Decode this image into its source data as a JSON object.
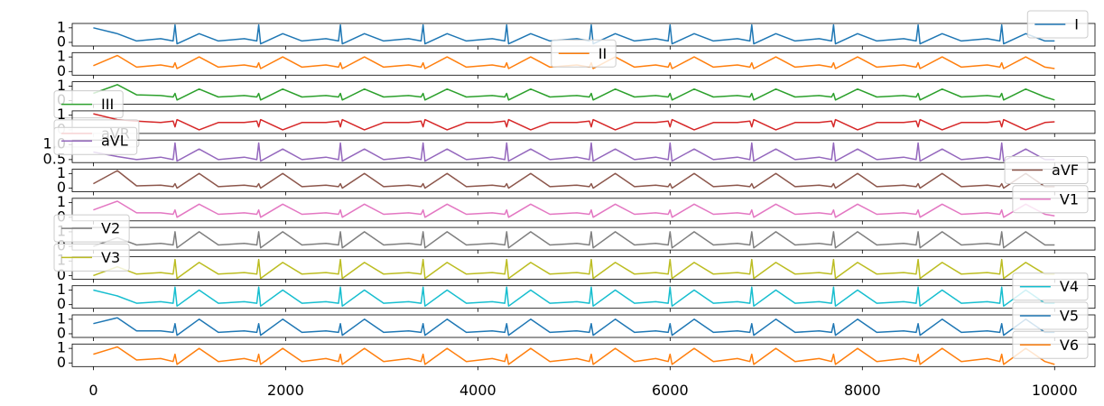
{
  "chart_data": {
    "type": "line",
    "xlim": [
      -220,
      10420
    ],
    "xticks": [
      0,
      2000,
      4000,
      6000,
      8000,
      10000
    ],
    "x": [
      0,
      250,
      450,
      700,
      830,
      850,
      870,
      1100,
      1300,
      1570,
      1700,
      1720,
      1740,
      1970,
      2170,
      2420,
      2550,
      2570,
      2590,
      2820,
      3020,
      3280,
      3410,
      3430,
      3450,
      3680,
      3880,
      4150,
      4280,
      4300,
      4320,
      4550,
      4750,
      5030,
      5160,
      5180,
      5200,
      5430,
      5630,
      5850,
      5980,
      6000,
      6020,
      6250,
      6450,
      6700,
      6830,
      6850,
      6870,
      7100,
      7300,
      7550,
      7680,
      7700,
      7720,
      7950,
      8150,
      8430,
      8560,
      8580,
      8600,
      8830,
      9030,
      9300,
      9430,
      9450,
      9470,
      9700,
      9900,
      10000
    ],
    "series": [
      {
        "name": "I",
        "color": "#1f77b4",
        "ylim": [
          -0.25,
          1.3
        ],
        "yticks": [
          0,
          1
        ],
        "legend_loc": "upper right",
        "values": [
          1.0,
          0.6,
          0.1,
          0.25,
          0.1,
          1.2,
          -0.1,
          0.6,
          0.1,
          0.25,
          0.1,
          1.2,
          -0.1,
          0.6,
          0.1,
          0.25,
          0.1,
          1.2,
          -0.1,
          0.6,
          0.1,
          0.25,
          0.1,
          1.2,
          -0.1,
          0.6,
          0.1,
          0.25,
          0.1,
          1.2,
          -0.1,
          0.6,
          0.1,
          0.25,
          0.1,
          1.2,
          -0.1,
          0.6,
          0.1,
          0.25,
          0.1,
          1.2,
          -0.1,
          0.6,
          0.1,
          0.25,
          0.1,
          1.2,
          -0.1,
          0.6,
          0.1,
          0.25,
          0.1,
          1.2,
          -0.1,
          0.6,
          0.1,
          0.25,
          0.1,
          1.2,
          -0.1,
          0.6,
          0.1,
          0.25,
          0.1,
          1.2,
          -0.1,
          0.6,
          0.1,
          0.1
        ]
      },
      {
        "name": "II",
        "color": "#ff7f0e",
        "ylim": [
          -0.25,
          1.3
        ],
        "yticks": [
          0,
          1
        ],
        "legend_loc": "upper center",
        "values": [
          0.4,
          1.1,
          0.3,
          0.45,
          0.3,
          0.6,
          0.2,
          1.0,
          0.3,
          0.45,
          0.3,
          0.6,
          0.2,
          1.0,
          0.3,
          0.45,
          0.3,
          0.6,
          0.2,
          1.0,
          0.3,
          0.45,
          0.3,
          0.6,
          0.2,
          1.0,
          0.3,
          0.45,
          0.3,
          0.6,
          0.2,
          1.0,
          0.3,
          0.45,
          0.3,
          0.6,
          0.2,
          1.0,
          0.3,
          0.45,
          0.3,
          0.6,
          0.2,
          1.0,
          0.3,
          0.45,
          0.3,
          0.6,
          0.2,
          1.0,
          0.3,
          0.45,
          0.3,
          0.6,
          0.2,
          1.0,
          0.3,
          0.45,
          0.3,
          0.6,
          0.2,
          1.0,
          0.3,
          0.45,
          0.3,
          0.6,
          0.2,
          1.0,
          0.3,
          0.2
        ]
      },
      {
        "name": "III",
        "color": "#2ca02c",
        "ylim": [
          -0.25,
          1.3
        ],
        "yticks": [
          0,
          1
        ],
        "legend_loc": "lower left",
        "values": [
          0.5,
          1.1,
          0.4,
          0.35,
          0.25,
          0.5,
          0.05,
          0.8,
          0.25,
          0.35,
          0.25,
          0.5,
          0.05,
          0.8,
          0.25,
          0.35,
          0.25,
          0.5,
          0.05,
          0.8,
          0.25,
          0.35,
          0.25,
          0.5,
          0.05,
          0.8,
          0.25,
          0.35,
          0.25,
          0.5,
          0.05,
          0.8,
          0.25,
          0.35,
          0.25,
          0.5,
          0.05,
          0.8,
          0.25,
          0.35,
          0.25,
          0.5,
          0.05,
          0.8,
          0.25,
          0.35,
          0.25,
          0.5,
          0.05,
          0.8,
          0.25,
          0.35,
          0.25,
          0.5,
          0.05,
          0.8,
          0.25,
          0.35,
          0.25,
          0.5,
          0.05,
          0.8,
          0.25,
          0.35,
          0.25,
          0.5,
          0.05,
          0.8,
          0.25,
          0.05
        ]
      },
      {
        "name": "aVR",
        "color": "#d62728",
        "ylim": [
          -0.25,
          1.3
        ],
        "yticks": [
          0,
          1
        ],
        "legend_loc": "lower left",
        "values": [
          1.1,
          0.7,
          0.6,
          0.5,
          0.6,
          0.2,
          0.7,
          0.0,
          0.5,
          0.5,
          0.6,
          0.2,
          0.7,
          0.0,
          0.5,
          0.5,
          0.6,
          0.2,
          0.7,
          0.0,
          0.5,
          0.5,
          0.6,
          0.2,
          0.7,
          0.0,
          0.5,
          0.5,
          0.6,
          0.2,
          0.7,
          0.0,
          0.5,
          0.5,
          0.6,
          0.2,
          0.7,
          0.0,
          0.5,
          0.5,
          0.6,
          0.2,
          0.7,
          0.0,
          0.5,
          0.5,
          0.6,
          0.2,
          0.7,
          0.0,
          0.5,
          0.5,
          0.6,
          0.2,
          0.7,
          0.0,
          0.5,
          0.5,
          0.6,
          0.2,
          0.7,
          0.0,
          0.5,
          0.5,
          0.6,
          0.2,
          0.7,
          0.0,
          0.5,
          0.55
        ]
      },
      {
        "name": "aVL",
        "color": "#9467bd",
        "ylim": [
          0.4,
          1.15
        ],
        "yticks": [
          0.5,
          {
            "value": 1,
            "label": "1.0"
          }
        ],
        "legend_loc": "upper left",
        "values": [
          0.75,
          0.6,
          0.5,
          0.58,
          0.5,
          1.05,
          0.45,
          0.85,
          0.5,
          0.58,
          0.5,
          1.05,
          0.45,
          0.85,
          0.5,
          0.58,
          0.5,
          1.05,
          0.45,
          0.85,
          0.5,
          0.58,
          0.5,
          1.05,
          0.45,
          0.85,
          0.5,
          0.58,
          0.5,
          1.05,
          0.45,
          0.85,
          0.5,
          0.58,
          0.5,
          1.05,
          0.45,
          0.85,
          0.5,
          0.58,
          0.5,
          1.05,
          0.45,
          0.85,
          0.5,
          0.58,
          0.5,
          1.05,
          0.45,
          0.85,
          0.5,
          0.58,
          0.5,
          1.05,
          0.45,
          0.85,
          0.5,
          0.58,
          0.5,
          1.05,
          0.45,
          0.85,
          0.5,
          0.58,
          0.5,
          1.05,
          0.45,
          0.85,
          0.5,
          0.5
        ]
      },
      {
        "name": "aVF",
        "color": "#8c564b",
        "ylim": [
          -0.25,
          1.3
        ],
        "yticks": [
          0,
          1
        ],
        "legend_loc": "upper right",
        "values": [
          0.3,
          1.2,
          0.15,
          0.2,
          0.1,
          0.3,
          0.0,
          1.0,
          0.1,
          0.2,
          0.1,
          0.3,
          0.0,
          1.0,
          0.1,
          0.2,
          0.1,
          0.3,
          0.0,
          1.0,
          0.1,
          0.2,
          0.1,
          0.3,
          0.0,
          1.0,
          0.1,
          0.2,
          0.1,
          0.3,
          0.0,
          1.0,
          0.1,
          0.2,
          0.1,
          0.3,
          0.0,
          1.0,
          0.1,
          0.2,
          0.1,
          0.3,
          0.0,
          1.0,
          0.1,
          0.2,
          0.1,
          0.3,
          0.0,
          1.0,
          0.1,
          0.2,
          0.1,
          0.3,
          0.0,
          1.0,
          0.1,
          0.2,
          0.1,
          0.3,
          0.0,
          1.0,
          0.1,
          0.2,
          0.1,
          0.3,
          0.0,
          1.0,
          0.1,
          0.1
        ]
      },
      {
        "name": "V1",
        "color": "#e377c2",
        "ylim": [
          -0.25,
          1.3
        ],
        "yticks": [
          0,
          1
        ],
        "legend_loc": "upper right",
        "values": [
          0.5,
          1.1,
          0.3,
          0.3,
          0.2,
          0.5,
          0.0,
          0.9,
          0.2,
          0.3,
          0.2,
          0.5,
          0.0,
          0.9,
          0.2,
          0.3,
          0.2,
          0.5,
          0.0,
          0.9,
          0.2,
          0.3,
          0.2,
          0.5,
          0.0,
          0.9,
          0.2,
          0.3,
          0.2,
          0.5,
          0.0,
          0.9,
          0.2,
          0.3,
          0.2,
          0.5,
          0.0,
          0.9,
          0.2,
          0.3,
          0.2,
          0.5,
          0.0,
          0.9,
          0.2,
          0.3,
          0.2,
          0.5,
          0.0,
          0.9,
          0.2,
          0.3,
          0.2,
          0.5,
          0.0,
          0.9,
          0.2,
          0.3,
          0.2,
          0.5,
          0.0,
          0.9,
          0.2,
          0.3,
          0.2,
          0.5,
          0.0,
          0.9,
          0.2,
          0.1
        ]
      },
      {
        "name": "V2",
        "color": "#7f7f7f",
        "ylim": [
          -0.25,
          1.3
        ],
        "yticks": [
          0,
          1
        ],
        "legend_loc": "upper left",
        "values": [
          0.0,
          0.6,
          0.1,
          0.2,
          0.1,
          1.0,
          -0.1,
          1.0,
          0.1,
          0.2,
          0.1,
          1.0,
          -0.1,
          1.0,
          0.1,
          0.2,
          0.1,
          1.0,
          -0.1,
          1.0,
          0.1,
          0.2,
          0.1,
          1.0,
          -0.1,
          1.0,
          0.1,
          0.2,
          0.1,
          1.0,
          -0.1,
          1.0,
          0.1,
          0.2,
          0.1,
          1.0,
          -0.1,
          1.0,
          0.1,
          0.2,
          0.1,
          1.0,
          -0.1,
          1.0,
          0.1,
          0.2,
          0.1,
          1.0,
          -0.1,
          1.0,
          0.1,
          0.2,
          0.1,
          1.0,
          -0.1,
          1.0,
          0.1,
          0.2,
          0.1,
          1.0,
          -0.1,
          1.0,
          0.1,
          0.2,
          0.1,
          1.0,
          -0.1,
          1.0,
          0.1,
          0.1
        ]
      },
      {
        "name": "V3",
        "color": "#bcbd22",
        "ylim": [
          -0.25,
          1.3
        ],
        "yticks": [
          0,
          1
        ],
        "legend_loc": "upper left",
        "values": [
          0.0,
          0.6,
          0.1,
          0.2,
          0.1,
          1.1,
          -0.2,
          0.9,
          0.1,
          0.2,
          0.1,
          1.1,
          -0.2,
          0.9,
          0.1,
          0.2,
          0.1,
          1.1,
          -0.2,
          0.9,
          0.1,
          0.2,
          0.1,
          1.1,
          -0.2,
          0.9,
          0.1,
          0.2,
          0.1,
          1.1,
          -0.2,
          0.9,
          0.1,
          0.2,
          0.1,
          1.1,
          -0.2,
          0.9,
          0.1,
          0.2,
          0.1,
          1.1,
          -0.2,
          0.9,
          0.1,
          0.2,
          0.1,
          1.1,
          -0.2,
          0.9,
          0.1,
          0.2,
          0.1,
          1.1,
          -0.2,
          0.9,
          0.1,
          0.2,
          0.1,
          1.1,
          -0.2,
          0.9,
          0.1,
          0.2,
          0.1,
          1.1,
          -0.2,
          0.9,
          0.1,
          0.1
        ]
      },
      {
        "name": "V4",
        "color": "#17becf",
        "ylim": [
          -0.25,
          1.3
        ],
        "yticks": [
          0,
          1
        ],
        "legend_loc": "upper right",
        "values": [
          1.0,
          0.6,
          0.1,
          0.2,
          0.1,
          1.2,
          -0.1,
          1.0,
          0.1,
          0.2,
          0.1,
          1.2,
          -0.1,
          1.0,
          0.1,
          0.2,
          0.1,
          1.2,
          -0.1,
          1.0,
          0.1,
          0.2,
          0.1,
          1.2,
          -0.1,
          1.0,
          0.1,
          0.2,
          0.1,
          1.2,
          -0.1,
          1.0,
          0.1,
          0.2,
          0.1,
          1.2,
          -0.1,
          1.0,
          0.1,
          0.2,
          0.1,
          1.2,
          -0.1,
          1.0,
          0.1,
          0.2,
          0.1,
          1.2,
          -0.1,
          1.0,
          0.1,
          0.2,
          0.1,
          1.2,
          -0.1,
          1.0,
          0.1,
          0.2,
          0.1,
          1.2,
          -0.1,
          1.0,
          0.1,
          0.2,
          0.1,
          1.2,
          -0.1,
          1.0,
          0.1,
          0.1
        ]
      },
      {
        "name": "V5",
        "color": "#1f77b4",
        "ylim": [
          -0.25,
          1.3
        ],
        "yticks": [
          0,
          1
        ],
        "legend_loc": "upper right",
        "values": [
          0.7,
          1.1,
          0.2,
          0.2,
          0.1,
          0.7,
          -0.1,
          1.0,
          0.1,
          0.2,
          0.1,
          0.7,
          -0.1,
          1.0,
          0.1,
          0.2,
          0.1,
          0.7,
          -0.1,
          1.0,
          0.1,
          0.2,
          0.1,
          0.7,
          -0.1,
          1.0,
          0.1,
          0.2,
          0.1,
          0.7,
          -0.1,
          1.0,
          0.1,
          0.2,
          0.1,
          0.7,
          -0.1,
          1.0,
          0.1,
          0.2,
          0.1,
          0.7,
          -0.1,
          1.0,
          0.1,
          0.2,
          0.1,
          0.7,
          -0.1,
          1.0,
          0.1,
          0.2,
          0.1,
          0.7,
          -0.1,
          1.0,
          0.1,
          0.2,
          0.1,
          0.7,
          -0.1,
          1.0,
          0.1,
          0.2,
          0.1,
          0.7,
          -0.1,
          1.0,
          0.1,
          0.1
        ]
      },
      {
        "name": "V6",
        "color": "#ff7f0e",
        "ylim": [
          -0.25,
          1.3
        ],
        "yticks": [
          0,
          1
        ],
        "legend_loc": "upper right",
        "values": [
          0.6,
          1.1,
          0.2,
          0.3,
          0.1,
          0.6,
          -0.1,
          1.0,
          0.1,
          0.3,
          0.1,
          0.6,
          -0.1,
          1.0,
          0.1,
          0.3,
          0.1,
          0.6,
          -0.1,
          1.0,
          0.1,
          0.3,
          0.1,
          0.6,
          -0.1,
          1.0,
          0.1,
          0.3,
          0.1,
          0.6,
          -0.1,
          1.0,
          0.1,
          0.3,
          0.1,
          0.6,
          -0.1,
          1.0,
          0.1,
          0.3,
          0.1,
          0.6,
          -0.1,
          1.0,
          0.1,
          0.3,
          0.1,
          0.6,
          -0.1,
          1.0,
          0.1,
          0.3,
          0.1,
          0.6,
          -0.1,
          1.0,
          0.1,
          0.3,
          0.1,
          0.6,
          -0.1,
          1.0,
          0.1,
          0.3,
          0.1,
          0.6,
          -0.1,
          1.0,
          0.1,
          -0.1
        ]
      }
    ]
  }
}
